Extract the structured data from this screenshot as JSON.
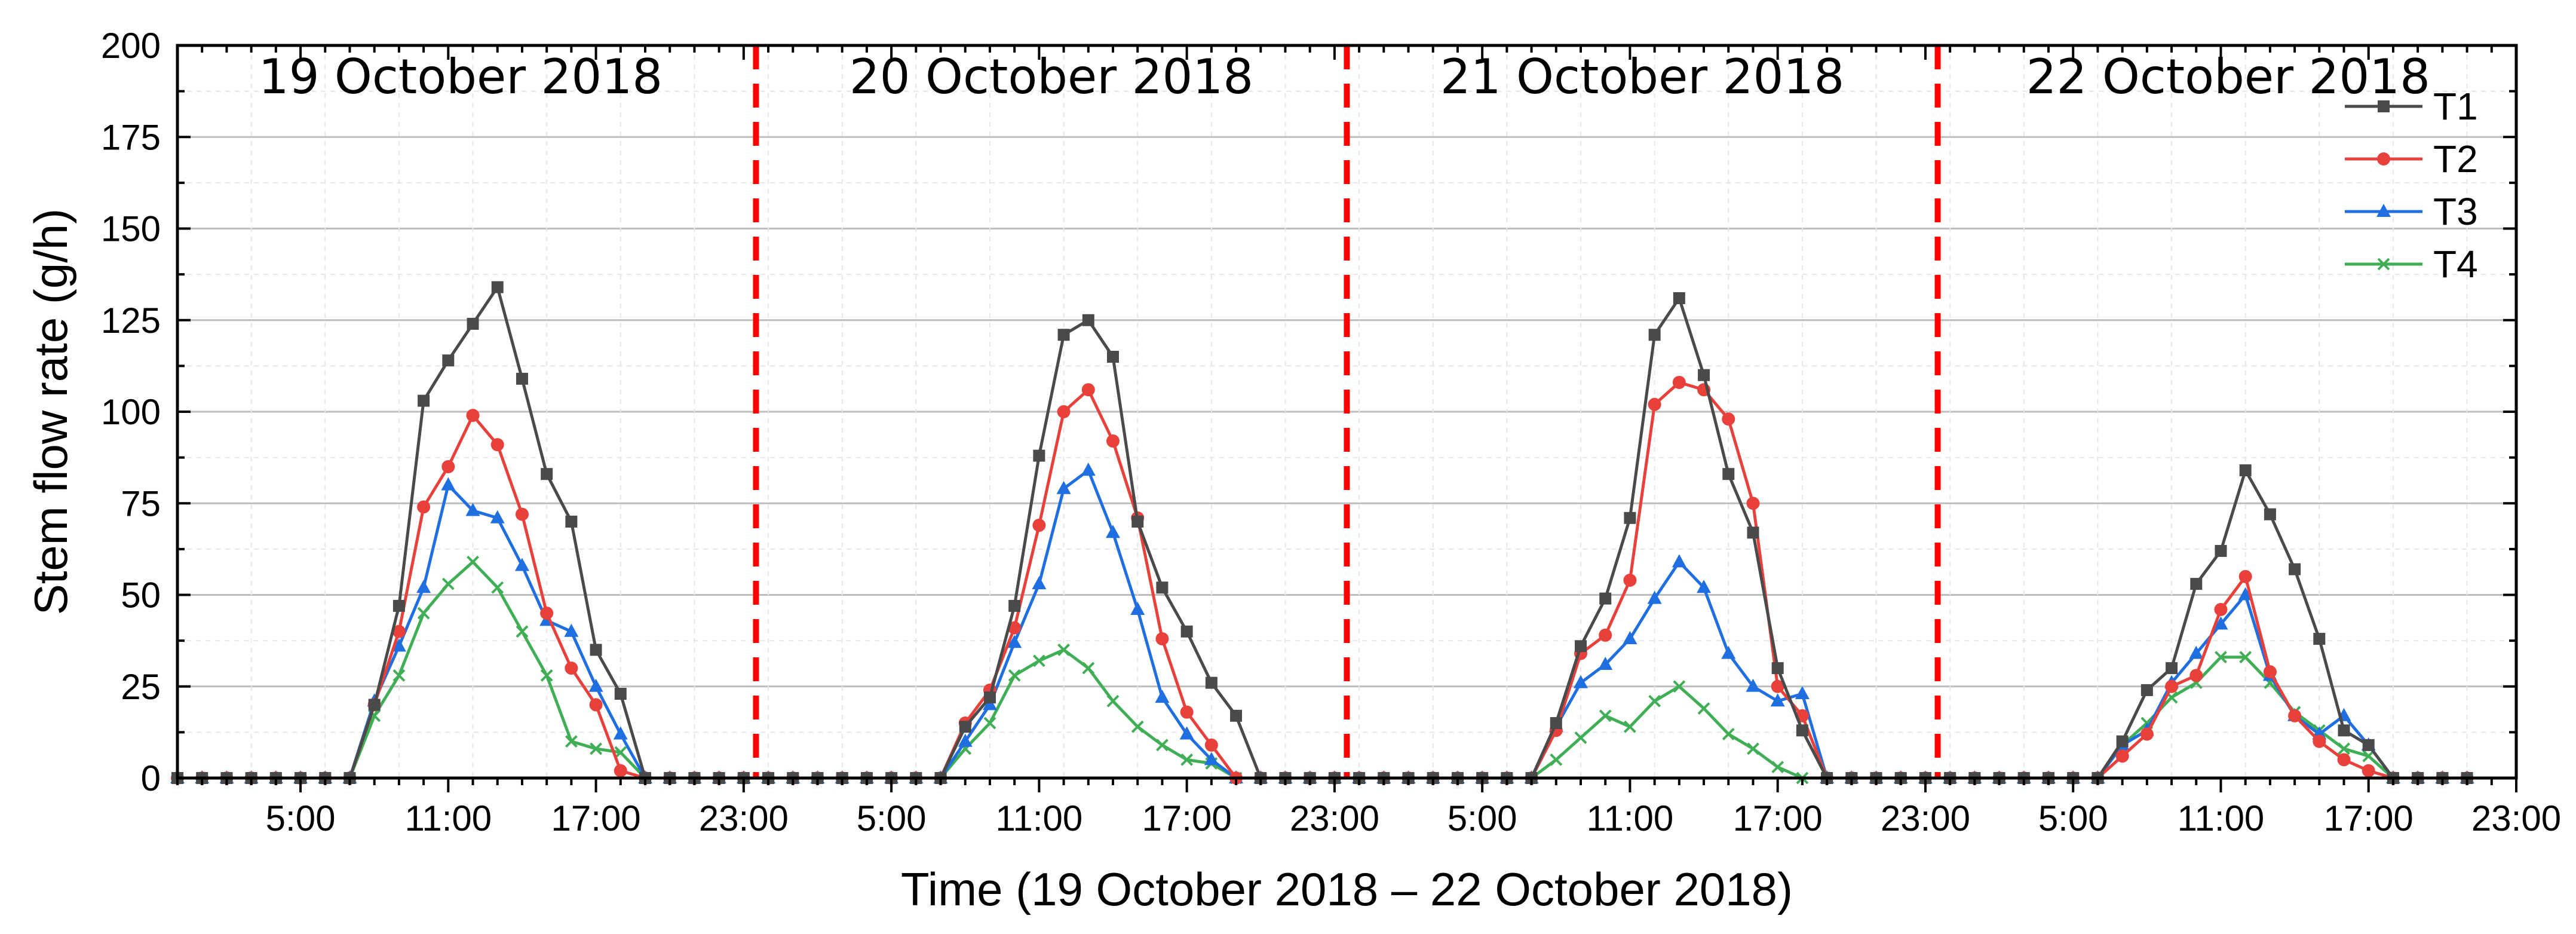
{
  "chart_data": {
    "type": "line",
    "xlabel": "Time (19 October 2018 – 22 October 2018)",
    "ylabel": "Stem flow rate (g/h)",
    "ylim": [
      0,
      200
    ],
    "yticks": [
      0,
      25,
      50,
      75,
      100,
      125,
      150,
      175,
      200
    ],
    "xlim": [
      0,
      95
    ],
    "xtick_labels": [
      "5:00",
      "11:00",
      "17:00",
      "23:00",
      "5:00",
      "11:00",
      "17:00",
      "23:00",
      "5:00",
      "11:00",
      "17:00",
      "23:00",
      "5:00",
      "11:00",
      "17:00",
      "23:00"
    ],
    "grid": true,
    "legend_position": "top-right",
    "day_labels": [
      "19 October 2018",
      "20 October 2018",
      "21 October 2018",
      "22 October 2018"
    ],
    "colors": {
      "T1": "#4a4a4a",
      "T2": "#e8413c",
      "T3": "#1f6fe0",
      "T4": "#3fae55",
      "divider": "#ff0000"
    },
    "series": [
      {
        "name": "T1",
        "marker": "square",
        "values": [
          0,
          0,
          0,
          0,
          0,
          0,
          0,
          0,
          20,
          47,
          103,
          114,
          124,
          134,
          109,
          83,
          70,
          35,
          23,
          0,
          0,
          0,
          0,
          0,
          0,
          0,
          0,
          0,
          0,
          0,
          0,
          0,
          14,
          22,
          47,
          88,
          121,
          125,
          115,
          70,
          52,
          40,
          26,
          17,
          0,
          0,
          0,
          0,
          0,
          0,
          0,
          0,
          0,
          0,
          0,
          0,
          15,
          36,
          49,
          71,
          121,
          131,
          110,
          83,
          67,
          30,
          13,
          0,
          0,
          0,
          0,
          0,
          0,
          0,
          0,
          0,
          0,
          0,
          0,
          10,
          24,
          30,
          53,
          62,
          84,
          72,
          57,
          38,
          13,
          9,
          0,
          0,
          0,
          0
        ]
      },
      {
        "name": "T2",
        "marker": "circle",
        "values": [
          0,
          0,
          0,
          0,
          0,
          0,
          0,
          0,
          20,
          40,
          74,
          85,
          99,
          91,
          72,
          45,
          30,
          20,
          2,
          0,
          0,
          0,
          0,
          0,
          0,
          0,
          0,
          0,
          0,
          0,
          0,
          0,
          15,
          24,
          41,
          69,
          100,
          106,
          92,
          71,
          38,
          18,
          9,
          0,
          0,
          0,
          0,
          0,
          0,
          0,
          0,
          0,
          0,
          0,
          0,
          0,
          13,
          34,
          39,
          54,
          102,
          108,
          106,
          98,
          75,
          25,
          17,
          0,
          0,
          0,
          0,
          0,
          0,
          0,
          0,
          0,
          0,
          0,
          0,
          6,
          12,
          25,
          28,
          46,
          55,
          29,
          17,
          10,
          5,
          2,
          0,
          0,
          0,
          0
        ]
      },
      {
        "name": "T3",
        "marker": "triangle",
        "values": [
          0,
          0,
          0,
          0,
          0,
          0,
          0,
          0,
          21,
          36,
          52,
          80,
          73,
          71,
          58,
          43,
          40,
          25,
          12,
          0,
          0,
          0,
          0,
          0,
          0,
          0,
          0,
          0,
          0,
          0,
          0,
          0,
          10,
          20,
          37,
          53,
          79,
          84,
          67,
          46,
          22,
          12,
          5,
          0,
          0,
          0,
          0,
          0,
          0,
          0,
          0,
          0,
          0,
          0,
          0,
          0,
          14,
          26,
          31,
          38,
          49,
          59,
          52,
          34,
          25,
          21,
          23,
          0,
          0,
          0,
          0,
          0,
          0,
          0,
          0,
          0,
          0,
          0,
          0,
          9,
          13,
          26,
          34,
          42,
          50,
          28,
          17,
          12,
          17,
          9,
          0,
          0,
          0,
          0
        ]
      },
      {
        "name": "T4",
        "marker": "x",
        "values": [
          0,
          0,
          0,
          0,
          0,
          0,
          0,
          0,
          17,
          28,
          45,
          53,
          59,
          52,
          40,
          28,
          10,
          8,
          7,
          0,
          0,
          0,
          0,
          0,
          0,
          0,
          0,
          0,
          0,
          0,
          0,
          0,
          8,
          15,
          28,
          32,
          35,
          30,
          21,
          14,
          9,
          5,
          4,
          0,
          0,
          0,
          0,
          0,
          0,
          0,
          0,
          0,
          0,
          0,
          0,
          0,
          5,
          11,
          17,
          14,
          21,
          25,
          19,
          12,
          8,
          3,
          0,
          0,
          0,
          0,
          0,
          0,
          0,
          0,
          0,
          0,
          0,
          0,
          0,
          9,
          15,
          22,
          26,
          33,
          33,
          26,
          18,
          13,
          8,
          6,
          0,
          0,
          0,
          0
        ]
      }
    ]
  }
}
